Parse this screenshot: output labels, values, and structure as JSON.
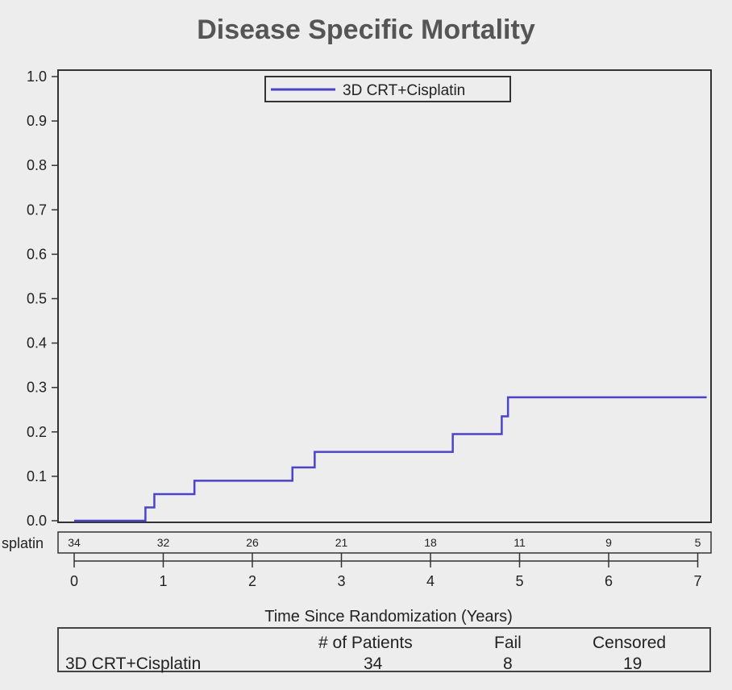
{
  "chart_data": {
    "type": "line",
    "title": "Disease Specific Mortality",
    "xlabel": "Time Since Randomization (Years)",
    "ylabel": "",
    "xlim": [
      0,
      7
    ],
    "ylim": [
      0,
      1
    ],
    "x_ticks": [
      "0",
      "1",
      "2",
      "3",
      "4",
      "5",
      "6",
      "7"
    ],
    "y_ticks": [
      "0.0",
      "0.1",
      "0.2",
      "0.3",
      "0.4",
      "0.5",
      "0.6",
      "0.7",
      "0.8",
      "0.9",
      "1.0"
    ],
    "legend": {
      "placement": "top-center",
      "entries": [
        "3D CRT+Cisplatin"
      ]
    },
    "grid": false,
    "series": [
      {
        "name": "3D CRT+Cisplatin",
        "color": "#4b44c8",
        "step": true,
        "x": [
          0,
          0.8,
          0.9,
          1.35,
          2.45,
          2.7,
          4.25,
          4.8,
          4.87,
          7.1
        ],
        "y": [
          0.0,
          0.03,
          0.06,
          0.09,
          0.12,
          0.155,
          0.195,
          0.235,
          0.278,
          0.278
        ]
      }
    ],
    "risk_table": {
      "group_label": "splatin",
      "times": [
        0,
        1,
        2,
        3,
        4,
        5,
        6,
        7
      ],
      "at_risk": [
        "34",
        "32",
        "26",
        "21",
        "18",
        "11",
        "9",
        "5"
      ]
    }
  },
  "summary_table": {
    "headers": [
      "# of Patients",
      "Fail",
      "Censored"
    ],
    "row_label": "3D CRT+Cisplatin",
    "values": [
      "34",
      "8",
      "19"
    ]
  }
}
